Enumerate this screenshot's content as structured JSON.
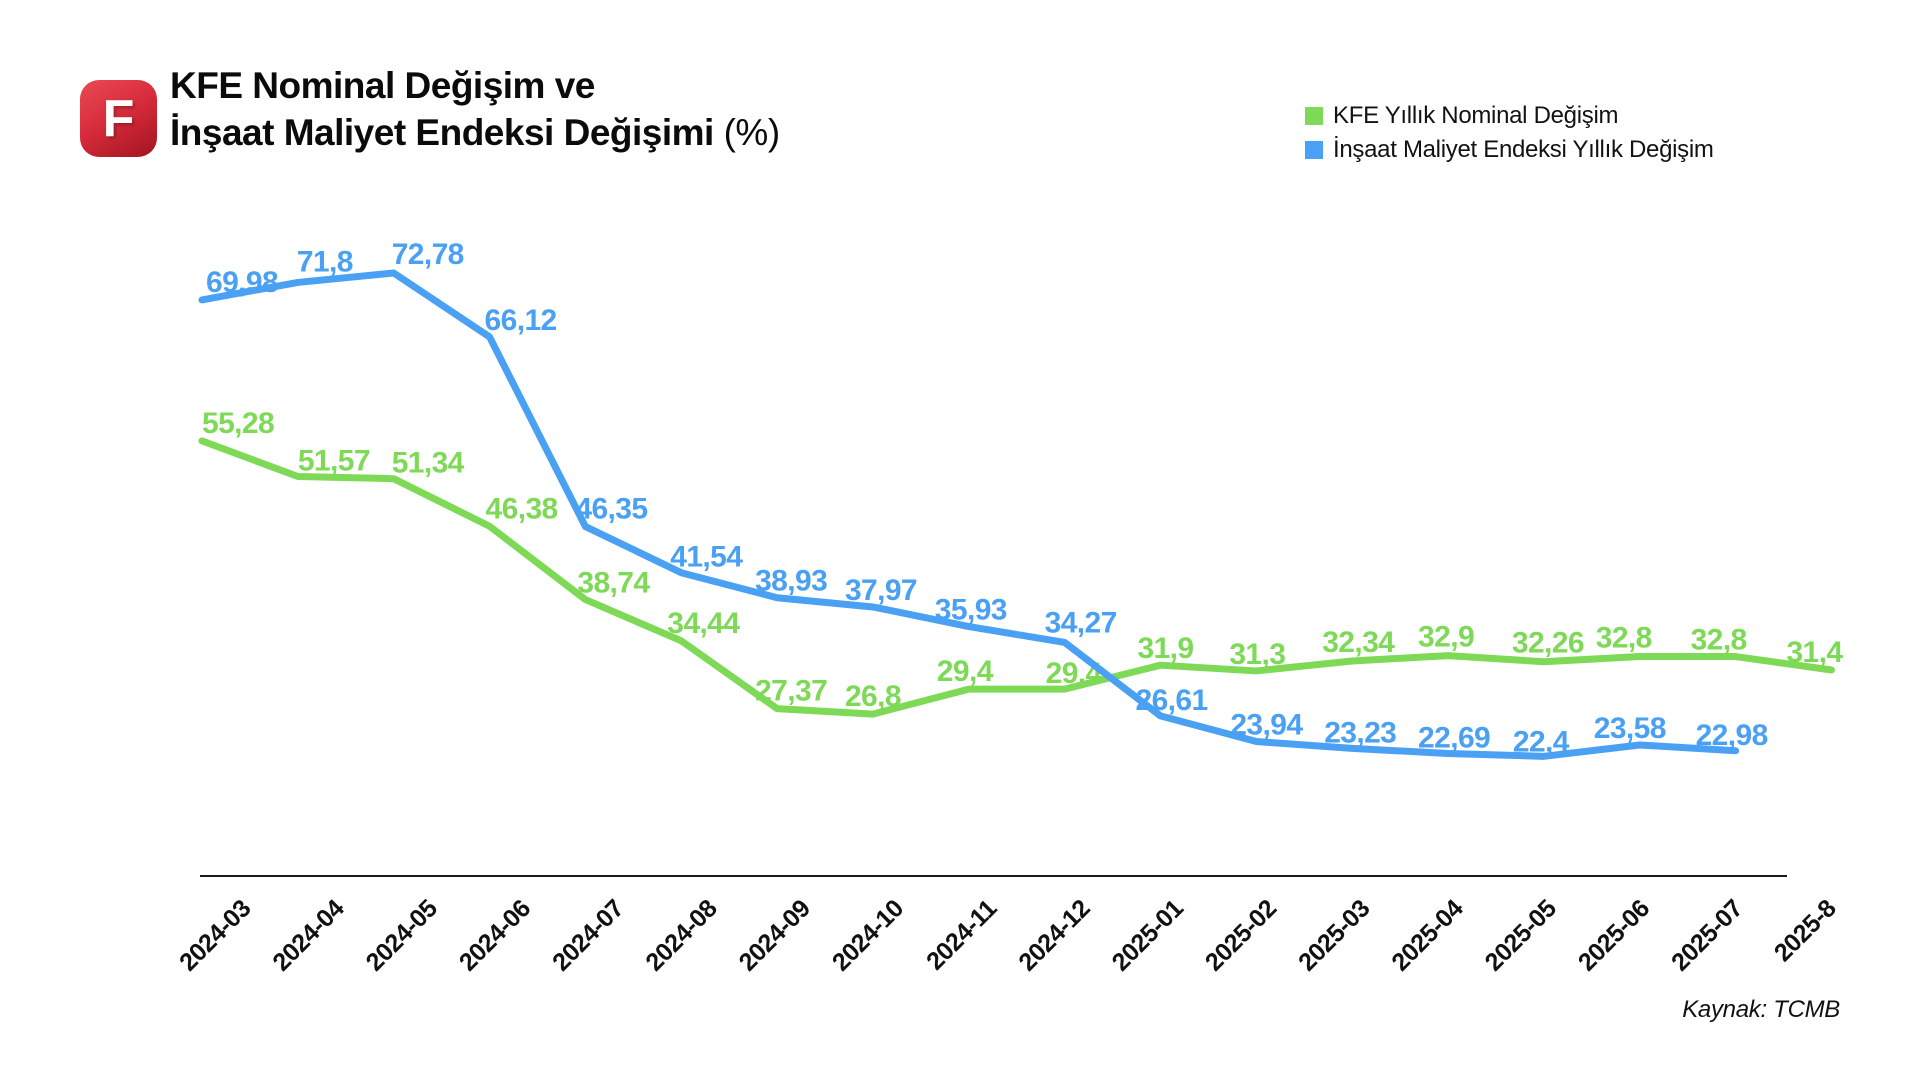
{
  "header": {
    "logo_letter": "F",
    "title_line1": "KFE Nominal Değişim ve",
    "title_line2_bold": "İnşaat Maliyet Endeksi Değişimi",
    "title_line2_suffix": "(%)"
  },
  "source_note": "Kaynak: TCMB",
  "chart_data": {
    "type": "line",
    "title": "KFE Nominal Değişim ve İnşaat Maliyet Endeksi Değişimi (%)",
    "categories": [
      "2024-03",
      "2024-04",
      "2024-05",
      "2024-06",
      "2024-07",
      "2024-08",
      "2024-09",
      "2024-10",
      "2024-11",
      "2024-12",
      "2025-01",
      "2025-02",
      "2025-03",
      "2025-04",
      "2025-05",
      "2025-06",
      "2025-07",
      "2025-8"
    ],
    "series": [
      {
        "name": "KFE Yıllık Nominal Değişim",
        "color": "#7ed957",
        "values": [
          55.28,
          51.57,
          51.34,
          46.38,
          38.74,
          34.44,
          27.37,
          26.8,
          29.4,
          29.4,
          31.9,
          31.3,
          32.34,
          32.9,
          32.26,
          32.8,
          32.8,
          31.4
        ]
      },
      {
        "name": "İnşaat Maliyet Endeksi Yıllık Değişim",
        "color": "#4aa0f2",
        "values": [
          69.98,
          71.8,
          72.78,
          66.12,
          46.35,
          41.54,
          38.93,
          37.97,
          35.93,
          34.27,
          26.61,
          23.94,
          23.23,
          22.69,
          22.4,
          23.58,
          22.98
        ]
      }
    ],
    "xlabel": "",
    "ylabel": "",
    "ylim": [
      10,
      78
    ],
    "grid": false,
    "y_axis_visible": false,
    "legend_position": "top-right",
    "value_labels": "every point, decimal comma format",
    "x_tick_rotation": -45
  },
  "colors": {
    "background": "#ffffff",
    "green_series": "#7ed957",
    "blue_series": "#4aa0f2",
    "axis": "#1a1a1a",
    "text": "#0b0b0b",
    "logo_red": "#d62b3b"
  }
}
